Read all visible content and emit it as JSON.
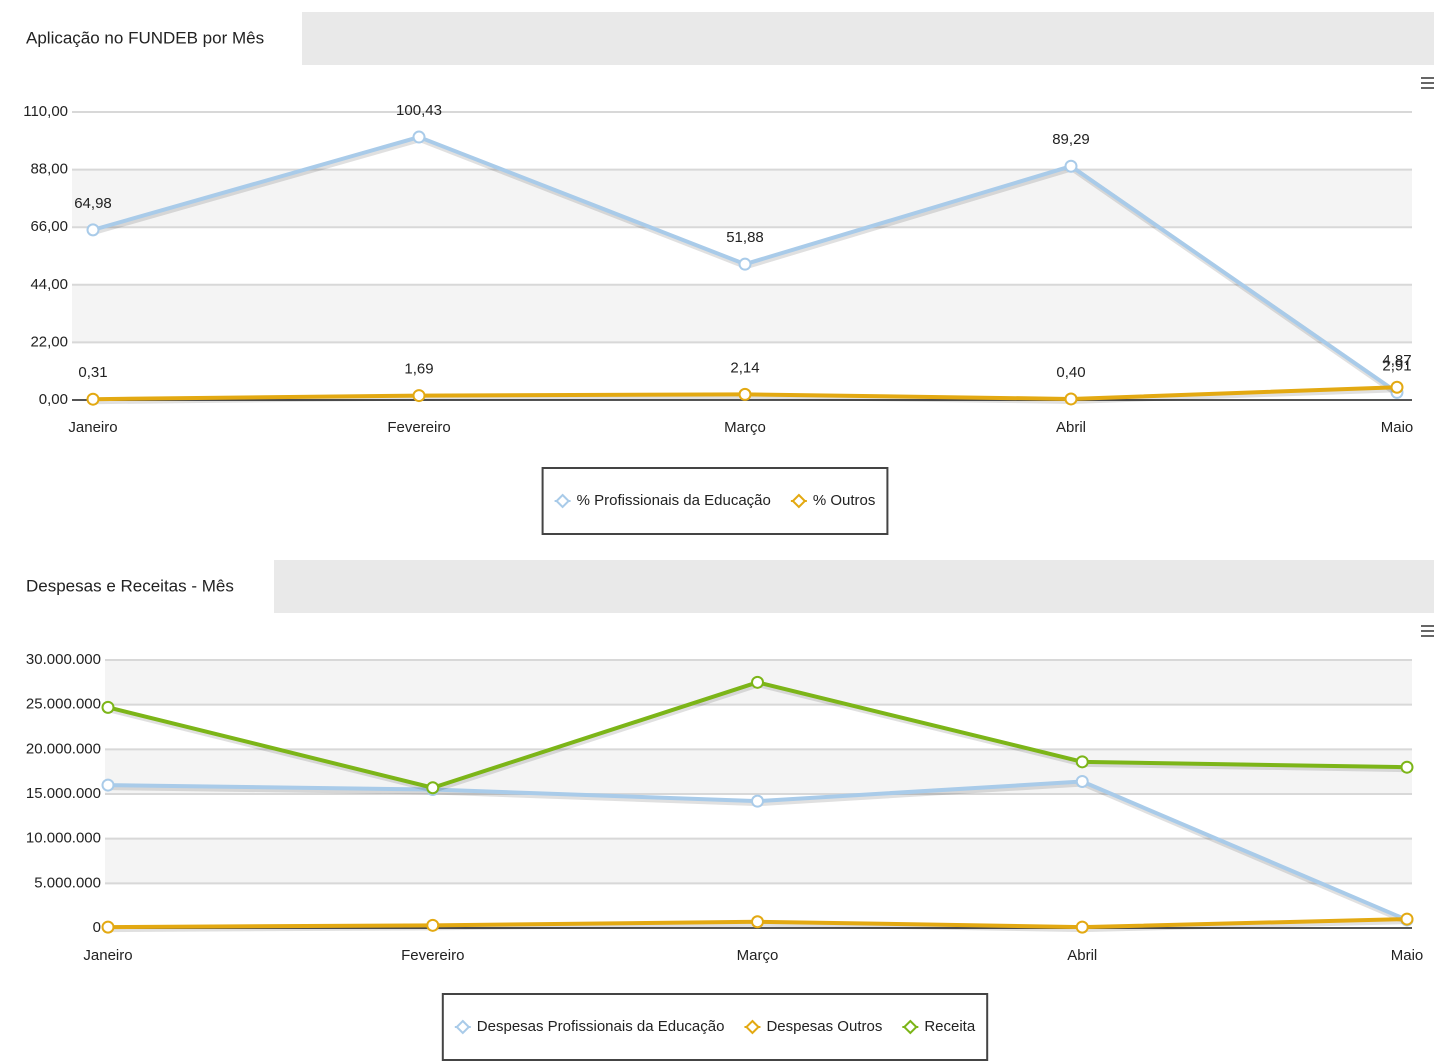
{
  "chart_data": [
    {
      "type": "line",
      "title": "Aplicação no FUNDEB por Mês",
      "categories": [
        "Janeiro",
        "Fevereiro",
        "Março",
        "Abril",
        "Maio"
      ],
      "series": [
        {
          "name": "% Profissionais da Educação",
          "color": "#a9cbe9",
          "values": [
            64.98,
            100.43,
            51.88,
            89.29,
            2.91
          ],
          "value_labels": [
            "64,98",
            "100,43",
            "51,88",
            "89,29",
            "2,91"
          ]
        },
        {
          "name": "% Outros",
          "color": "#e3a912",
          "values": [
            0.31,
            1.69,
            2.14,
            0.4,
            4.87
          ],
          "value_labels": [
            "0,31",
            "1,69",
            "2,14",
            "0,40",
            "4,87"
          ]
        }
      ],
      "ylim": [
        0,
        110
      ],
      "yticks": [
        {
          "value": 0,
          "label": "0,00"
        },
        {
          "value": 22,
          "label": "22,00"
        },
        {
          "value": 44,
          "label": "44,00"
        },
        {
          "value": 66,
          "label": "66,00"
        },
        {
          "value": 88,
          "label": "88,00"
        },
        {
          "value": 110,
          "label": "110,00"
        }
      ],
      "grid": true,
      "legend": "bottom"
    },
    {
      "type": "line",
      "title": "Despesas e Receitas - Mês",
      "categories": [
        "Janeiro",
        "Fevereiro",
        "Março",
        "Abril",
        "Maio"
      ],
      "series": [
        {
          "name": "Despesas Profissionais da Educação",
          "color": "#a9cbe9",
          "values": [
            16000000,
            15500000,
            14200000,
            16400000,
            900000
          ]
        },
        {
          "name": "Despesas Outros",
          "color": "#e3a912",
          "values": [
            100000,
            300000,
            700000,
            100000,
            1000000
          ]
        },
        {
          "name": "Receita",
          "color": "#7cb518",
          "values": [
            24700000,
            15700000,
            27500000,
            18600000,
            18000000
          ]
        }
      ],
      "ylim": [
        0,
        30000000
      ],
      "yticks": [
        0,
        {
          "value": 5000000,
          "label": "5.000.000"
        },
        {
          "value": 10000000,
          "label": "10.000.000"
        },
        {
          "value": 15000000,
          "label": "15.000.000"
        },
        {
          "value": 20000000,
          "label": "20.000.000"
        },
        {
          "value": 25000000,
          "label": "25.000.000"
        },
        {
          "value": 30000000,
          "label": "30.000.000"
        }
      ],
      "grid": true,
      "legend": "bottom"
    }
  ]
}
